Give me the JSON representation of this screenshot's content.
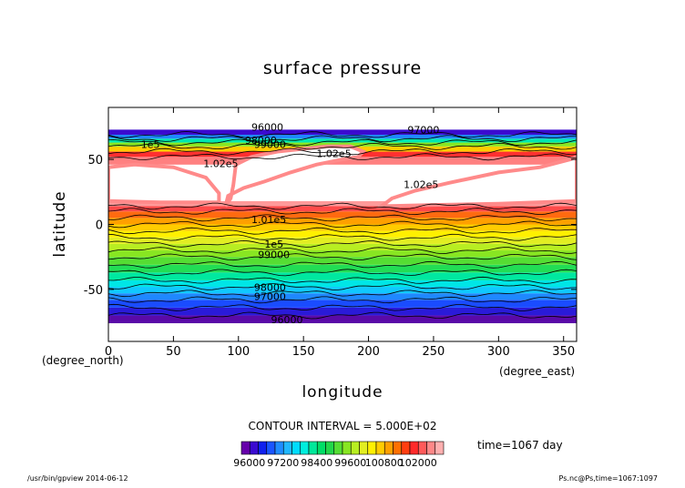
{
  "chart_data": {
    "type": "heatmap",
    "title": "surface pressure",
    "xlabel": "longitude",
    "ylabel": "latitude",
    "xunit": "(degree_east)",
    "yunit": "(degree_north)",
    "xlim": [
      0,
      360
    ],
    "ylim": [
      -90,
      90
    ],
    "xticks": [
      "0",
      "50",
      "100",
      "150",
      "200",
      "250",
      "300",
      "350"
    ],
    "xtick_values": [
      0,
      50,
      100,
      150,
      200,
      250,
      300,
      350
    ],
    "yticks": [
      "50",
      "0",
      "-50"
    ],
    "ytick_values": [
      50,
      0,
      -50
    ],
    "contour_interval_text": "CONTOUR INTERVAL = 5.000E+02",
    "time_text": "time=1067 day",
    "colorbar_labels": [
      "96000",
      "97200",
      "98400",
      "99600",
      "100800",
      "102000"
    ],
    "colorbar_colors": [
      "#6600aa",
      "#3a0ad0",
      "#1020ee",
      "#1a55ff",
      "#1f8cff",
      "#20b8ff",
      "#00dcff",
      "#00eedd",
      "#00e89a",
      "#00dd66",
      "#22d64a",
      "#55dd33",
      "#88e622",
      "#b8ee22",
      "#e2ee22",
      "#fff000",
      "#ffcc00",
      "#ffa000",
      "#ff7000",
      "#ff3e10",
      "#ff2a2a",
      "#ff5a5a",
      "#ff8888",
      "#ffb0b0"
    ],
    "contour_labels": [
      {
        "text": "96000",
        "lon": 110,
        "lat": 72
      },
      {
        "text": "97000",
        "lon": 230,
        "lat": 70
      },
      {
        "text": "98000",
        "lon": 105,
        "lat": 62
      },
      {
        "text": "99000",
        "lon": 112,
        "lat": 59
      },
      {
        "text": "1e5",
        "lon": 25,
        "lat": 59
      },
      {
        "text": "1.02e5",
        "lon": 73,
        "lat": 44
      },
      {
        "text": "1.02e5",
        "lon": 160,
        "lat": 52
      },
      {
        "text": "1.02e5",
        "lon": 227,
        "lat": 28
      },
      {
        "text": "1.01e5",
        "lon": 110,
        "lat": 1
      },
      {
        "text": "1e5",
        "lon": 120,
        "lat": -18
      },
      {
        "text": "99000",
        "lon": 115,
        "lat": -26
      },
      {
        "text": "98000",
        "lon": 112,
        "lat": -51
      },
      {
        "text": "97000",
        "lon": 112,
        "lat": -58
      },
      {
        "text": "96000",
        "lon": 125,
        "lat": -76
      }
    ]
  },
  "footer": {
    "left": "/usr/bin/gpview  2014-06-12",
    "right": "Ps.nc@Ps,time=1067:1097"
  }
}
